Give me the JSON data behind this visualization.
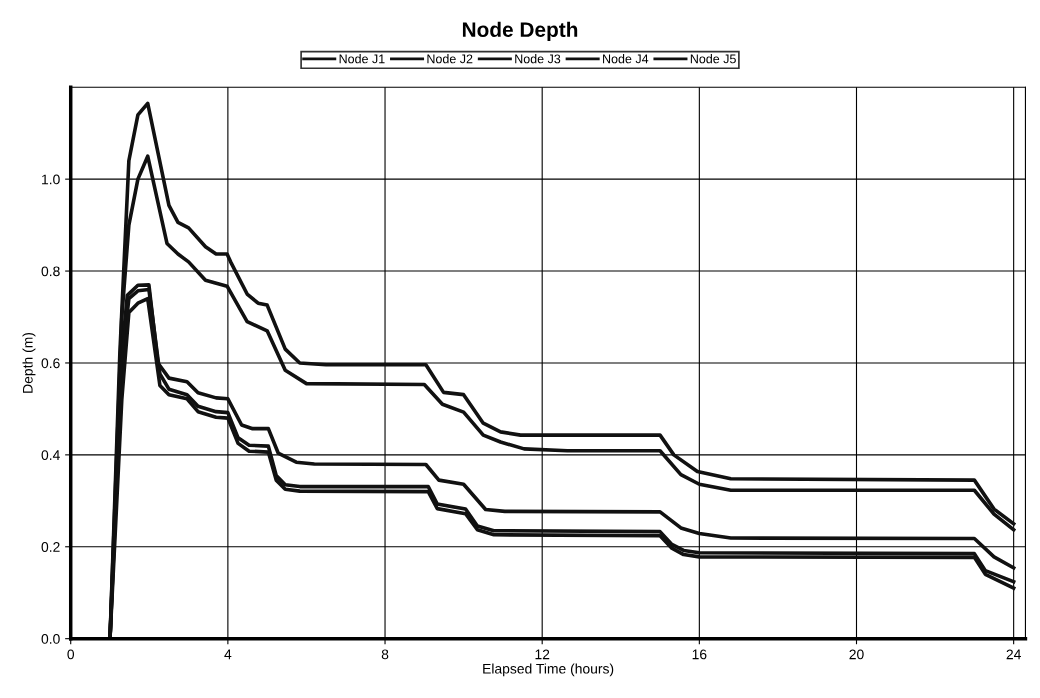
{
  "chart_data": {
    "type": "line",
    "title": "Node Depth",
    "xlabel": "Elapsed Time (hours)",
    "ylabel": "Depth (m)",
    "xlim": [
      0,
      24.3
    ],
    "xticks": [
      0,
      4,
      8,
      12,
      16,
      20,
      24
    ],
    "ylim": [
      0,
      1.2
    ],
    "yticks": [
      {
        "value": 0,
        "label": "0.0"
      },
      0.2,
      0.4,
      0.6,
      0.8,
      {
        "value": 1.0,
        "label": "1.0"
      }
    ],
    "grid": true,
    "legend": "top",
    "marker": "none",
    "line_style": "solid",
    "series": [
      {
        "name": "Node J1",
        "color": "#111111",
        "x": [
          1.0,
          1.25,
          1.48,
          1.71,
          1.96,
          2.5,
          2.73,
          3.0,
          3.43,
          3.7,
          3.98,
          4.07,
          4.49,
          4.77,
          5.0,
          5.46,
          5.83,
          6.5,
          9.04,
          9.49,
          10.0,
          10.5,
          10.94,
          11.45,
          15.0,
          15.35,
          15.95,
          16.8,
          23.0,
          23.5,
          24.0
        ],
        "values": [
          0,
          0.62,
          1.04,
          1.14,
          1.165,
          0.943,
          0.906,
          0.894,
          0.853,
          0.837,
          0.837,
          0.82,
          0.75,
          0.73,
          0.726,
          0.63,
          0.6,
          0.596,
          0.596,
          0.536,
          0.531,
          0.469,
          0.45,
          0.443,
          0.443,
          0.4,
          0.364,
          0.348,
          0.345,
          0.282,
          0.25
        ]
      },
      {
        "name": "Node J2",
        "color": "#111111",
        "x": [
          1.0,
          1.3,
          1.48,
          1.71,
          1.96,
          2.45,
          2.73,
          3.0,
          3.43,
          3.98,
          4.49,
          5.0,
          5.46,
          6.0,
          9.0,
          9.46,
          10.0,
          10.5,
          10.94,
          11.54,
          12.64,
          15.0,
          15.53,
          16.0,
          16.8,
          23.0,
          23.5,
          24.0
        ],
        "values": [
          0,
          0.7,
          0.9,
          1.0,
          1.05,
          0.86,
          0.837,
          0.82,
          0.78,
          0.767,
          0.69,
          0.67,
          0.584,
          0.555,
          0.553,
          0.51,
          0.493,
          0.443,
          0.428,
          0.413,
          0.409,
          0.409,
          0.357,
          0.336,
          0.323,
          0.323,
          0.271,
          0.237
        ]
      },
      {
        "name": "Node J3",
        "color": "#111111",
        "x": [
          1.0,
          1.3,
          1.44,
          1.71,
          1.99,
          2.22,
          2.5,
          2.96,
          3.24,
          3.7,
          4.0,
          4.35,
          4.63,
          5.03,
          5.28,
          5.74,
          6.2,
          9.04,
          9.37,
          10.0,
          10.56,
          11.05,
          15.0,
          15.53,
          16.0,
          16.8,
          23.0,
          23.5,
          24.0
        ],
        "values": [
          0,
          0.62,
          0.747,
          0.769,
          0.77,
          0.6,
          0.567,
          0.559,
          0.535,
          0.524,
          0.522,
          0.465,
          0.457,
          0.457,
          0.404,
          0.384,
          0.38,
          0.379,
          0.345,
          0.336,
          0.281,
          0.277,
          0.276,
          0.241,
          0.229,
          0.219,
          0.218,
          0.178,
          0.154
        ]
      },
      {
        "name": "Node J4",
        "color": "#111111",
        "x": [
          1.0,
          1.3,
          1.48,
          1.71,
          1.99,
          2.27,
          2.5,
          2.96,
          3.24,
          3.7,
          4.0,
          4.26,
          4.54,
          5.03,
          5.23,
          5.46,
          5.83,
          9.1,
          9.33,
          10.05,
          10.35,
          10.77,
          15.0,
          15.3,
          15.6,
          16.0,
          23.0,
          23.28,
          24.0
        ],
        "values": [
          0,
          0.6,
          0.74,
          0.757,
          0.76,
          0.576,
          0.543,
          0.531,
          0.506,
          0.494,
          0.492,
          0.437,
          0.421,
          0.419,
          0.355,
          0.335,
          0.331,
          0.331,
          0.293,
          0.282,
          0.245,
          0.235,
          0.233,
          0.205,
          0.192,
          0.187,
          0.185,
          0.148,
          0.124
        ]
      },
      {
        "name": "Node J5",
        "color": "#111111",
        "x": [
          1.0,
          1.3,
          1.48,
          1.71,
          1.96,
          2.27,
          2.5,
          2.96,
          3.24,
          3.7,
          4.0,
          4.26,
          4.54,
          5.03,
          5.23,
          5.46,
          5.83,
          9.1,
          9.33,
          10.05,
          10.35,
          10.77,
          15.0,
          15.3,
          15.6,
          16.0,
          23.0,
          23.28,
          24.0
        ],
        "values": [
          0,
          0.52,
          0.71,
          0.73,
          0.74,
          0.551,
          0.531,
          0.522,
          0.494,
          0.482,
          0.48,
          0.425,
          0.408,
          0.406,
          0.345,
          0.325,
          0.321,
          0.32,
          0.283,
          0.272,
          0.237,
          0.226,
          0.224,
          0.197,
          0.183,
          0.178,
          0.177,
          0.14,
          0.11
        ]
      }
    ]
  }
}
